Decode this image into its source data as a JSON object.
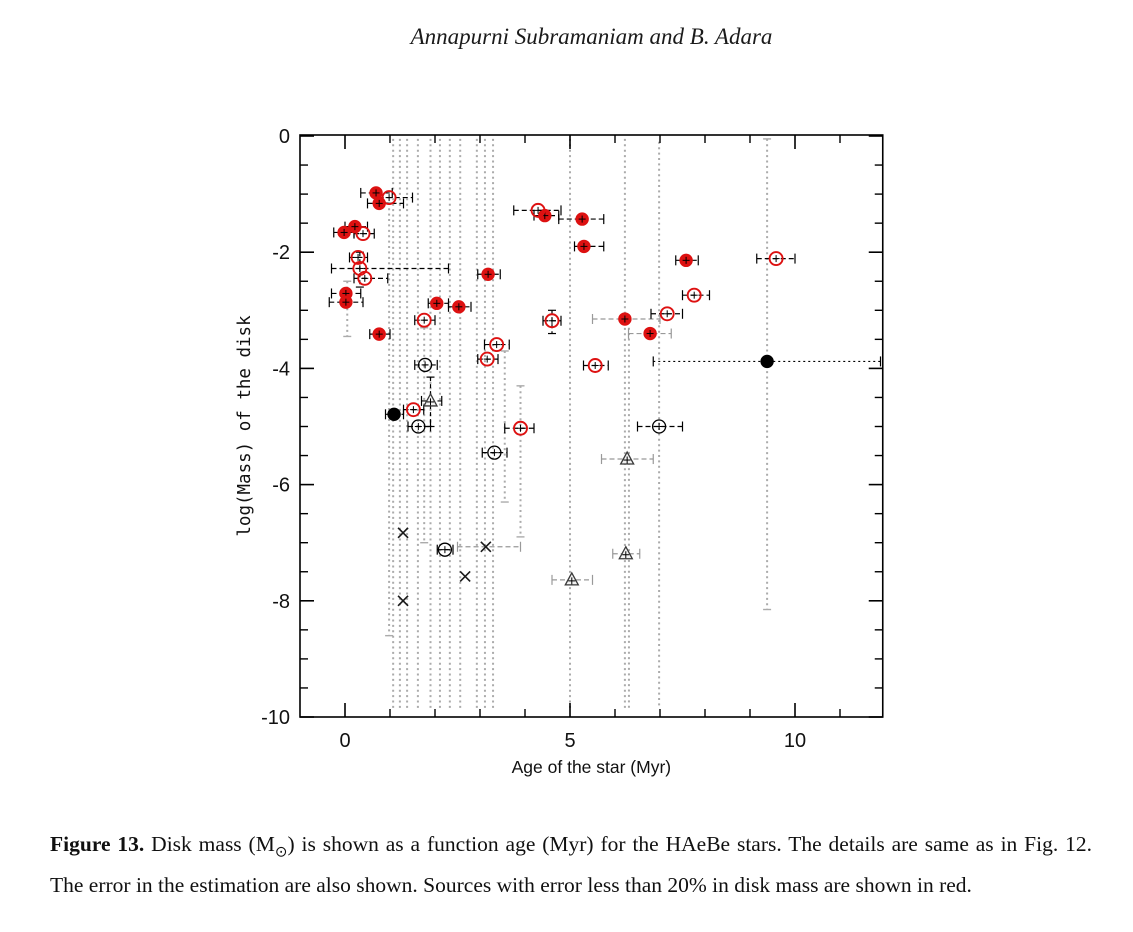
{
  "header": {
    "authors": "Annapurni Subramaniam and B. Adara"
  },
  "figure": {
    "label": "Figure 13.",
    "caption_pre_sub": " Disk mass (M",
    "caption_sub": "⊙",
    "caption_post_sub": ") is shown as a function age (Myr) for the HAeBe stars. The details are same as in Fig. 12. The error in the estimation are also shown. Sources with error less than 20% in disk mass are shown in red."
  },
  "chart_data": {
    "type": "scatter",
    "title": "",
    "xlabel": "Age of the star (Myr)",
    "ylabel": "log(Mass) of the disk",
    "xlim": [
      -1,
      11.95
    ],
    "ylim": [
      -10,
      0
    ],
    "xticks_major": [
      0,
      5,
      10
    ],
    "xticks_minor": [
      1,
      2,
      3,
      4,
      6,
      7,
      8,
      9,
      11
    ],
    "yticks_major": [
      0,
      -2,
      -4,
      -6,
      -8,
      -10
    ],
    "ytick_minor_step": 0.5,
    "grid": false,
    "legend_position": "none",
    "note": "red symbols = sources with error less than 20% in disk mass",
    "colors": {
      "red": "#dd1111",
      "black": "#000000",
      "gray": "#999999",
      "bar_gray": "#ababab"
    },
    "series": [
      {
        "name": "red filled circles",
        "marker": "filled_circle",
        "color": "red",
        "points": [
          {
            "x": 0.69,
            "y": -0.98,
            "xe": [
              0.35,
              1.05
            ]
          },
          {
            "x": 0.76,
            "y": -1.16,
            "xe": [
              0.5,
              1.3
            ]
          },
          {
            "x": 0.22,
            "y": -1.56,
            "xe": [
              0.0,
              0.5
            ]
          },
          {
            "x": -0.02,
            "y": -1.66,
            "xe": [
              -0.25,
              0.2
            ]
          },
          {
            "x": 0.02,
            "y": -2.71,
            "xe": [
              -0.3,
              0.35
            ]
          },
          {
            "x": 0.02,
            "y": -2.86,
            "xe": [
              -0.35,
              0.4
            ]
          },
          {
            "x": 0.76,
            "y": -3.41,
            "xe": [
              0.55,
              1.0
            ]
          },
          {
            "x": 2.04,
            "y": -2.88,
            "xe": [
              1.85,
              2.3
            ]
          },
          {
            "x": 2.53,
            "y": -2.94,
            "xe": [
              2.3,
              2.8
            ]
          },
          {
            "x": 3.18,
            "y": -2.38,
            "xe": [
              2.95,
              3.45
            ]
          },
          {
            "x": 4.44,
            "y": -1.37,
            "xe": [
              4.2,
              4.75
            ]
          },
          {
            "x": 5.27,
            "y": -1.43,
            "xe": [
              4.75,
              5.75
            ]
          },
          {
            "x": 5.31,
            "y": -1.9,
            "xe": [
              5.1,
              5.75
            ]
          },
          {
            "x": 6.22,
            "y": -3.15,
            "xe": [
              5.5,
              7.0
            ],
            "ec": "gray"
          },
          {
            "x": 6.78,
            "y": -3.4,
            "xe": [
              6.3,
              7.25
            ],
            "ec": "gray"
          },
          {
            "x": 7.58,
            "y": -2.14,
            "xe": [
              7.35,
              7.85
            ]
          }
        ]
      },
      {
        "name": "red open circles",
        "marker": "open_circle",
        "color": "red",
        "points": [
          {
            "x": 0.98,
            "y": -1.06,
            "xe": [
              0.75,
              1.5
            ]
          },
          {
            "x": 0.4,
            "y": -1.68,
            "xe": [
              0.2,
              0.65
            ]
          },
          {
            "x": 0.29,
            "y": -2.09,
            "xe": [
              0.1,
              0.5
            ]
          },
          {
            "x": 0.33,
            "y": -2.28,
            "xe": [
              -0.3,
              2.3
            ],
            "ye": [
              -2.0,
              -2.6
            ]
          },
          {
            "x": 0.44,
            "y": -2.45,
            "xe": [
              0.2,
              0.95
            ]
          },
          {
            "x": 1.76,
            "y": -3.17,
            "xe": [
              1.55,
              2.0
            ]
          },
          {
            "x": 3.37,
            "y": -3.59,
            "xe": [
              3.1,
              3.65
            ]
          },
          {
            "x": 3.16,
            "y": -3.84,
            "xe": [
              2.95,
              3.4
            ]
          },
          {
            "x": 3.9,
            "y": -5.03,
            "xe": [
              3.55,
              4.2
            ]
          },
          {
            "x": 4.29,
            "y": -1.28,
            "xe": [
              3.75,
              4.8
            ]
          },
          {
            "x": 4.6,
            "y": -3.18,
            "xe": [
              4.4,
              4.8
            ],
            "ye": [
              -3.0,
              -3.4
            ]
          },
          {
            "x": 5.56,
            "y": -3.95,
            "xe": [
              5.3,
              5.85
            ]
          },
          {
            "x": 7.16,
            "y": -3.06,
            "xe": [
              6.8,
              7.5
            ]
          },
          {
            "x": 7.76,
            "y": -2.74,
            "xe": [
              7.5,
              8.1
            ]
          },
          {
            "x": 9.58,
            "y": -2.11,
            "xe": [
              9.15,
              10.0
            ]
          },
          {
            "x": 1.52,
            "y": -4.71,
            "xe": [
              1.3,
              1.75
            ]
          }
        ]
      },
      {
        "name": "black open circles",
        "marker": "open_circle",
        "color": "black",
        "points": [
          {
            "x": 1.78,
            "y": -3.94,
            "xe": [
              1.55,
              2.05
            ]
          },
          {
            "x": 1.63,
            "y": -5.0,
            "xe": [
              1.4,
              1.9
            ]
          },
          {
            "x": 3.32,
            "y": -5.45,
            "xe": [
              3.05,
              3.6
            ]
          },
          {
            "x": 2.22,
            "y": -7.12,
            "xe": [
              2.05,
              2.4
            ]
          },
          {
            "x": 6.98,
            "y": -5.0,
            "xe": [
              6.5,
              7.5
            ]
          }
        ]
      },
      {
        "name": "black filled circles",
        "marker": "filled_circle",
        "color": "black",
        "points": [
          {
            "x": 1.09,
            "y": -4.79,
            "xe": [
              0.9,
              1.3
            ]
          },
          {
            "x": 9.38,
            "y": -3.88,
            "xe": [
              6.85,
              11.9
            ],
            "dotted": true
          }
        ]
      },
      {
        "name": "open triangles",
        "marker": "triangle",
        "color": "black",
        "points": [
          {
            "x": 1.9,
            "y": -4.56,
            "xe": [
              1.7,
              2.15
            ],
            "ye": [
              -4.15,
              -5.0
            ]
          },
          {
            "x": 6.27,
            "y": -5.56,
            "xe": [
              5.7,
              6.85
            ],
            "ec": "gray"
          },
          {
            "x": 6.24,
            "y": -7.19,
            "xe": [
              5.95,
              6.55
            ],
            "ec": "gray"
          },
          {
            "x": 5.04,
            "y": -7.64,
            "xe": [
              4.6,
              5.5
            ],
            "ec": "gray"
          }
        ]
      },
      {
        "name": "crosses",
        "marker": "cross",
        "color": "black",
        "points": [
          {
            "x": 1.29,
            "y": -6.83
          },
          {
            "x": 3.13,
            "y": -7.07,
            "xe": [
              2.5,
              3.9
            ],
            "ec": "gray"
          },
          {
            "x": 2.67,
            "y": -7.58
          },
          {
            "x": 1.29,
            "y": -8.0
          }
        ]
      }
    ],
    "vertical_error_bars": [
      {
        "x": 0.05,
        "y1": -2.5,
        "y2": -3.45,
        "caps": true
      },
      {
        "x": 0.98,
        "y1": -1.15,
        "y2": -8.6,
        "caps": true
      },
      {
        "x": 1.07,
        "y1": -0.05,
        "y2": -9.85
      },
      {
        "x": 1.22,
        "y1": -0.05,
        "y2": -9.85
      },
      {
        "x": 1.38,
        "y1": -0.05,
        "y2": -9.85
      },
      {
        "x": 1.62,
        "y1": -0.05,
        "y2": -9.85
      },
      {
        "x": 1.76,
        "y1": -3.3,
        "y2": -7.0,
        "caps": true
      },
      {
        "x": 1.9,
        "y1": -0.05,
        "y2": -9.85
      },
      {
        "x": 2.11,
        "y1": -0.05,
        "y2": -9.85
      },
      {
        "x": 2.33,
        "y1": -0.05,
        "y2": -9.85
      },
      {
        "x": 2.56,
        "y1": -0.05,
        "y2": -9.85
      },
      {
        "x": 2.93,
        "y1": -0.05,
        "y2": -9.85
      },
      {
        "x": 3.11,
        "y1": -0.05,
        "y2": -9.85
      },
      {
        "x": 3.29,
        "y1": -0.05,
        "y2": -9.85
      },
      {
        "x": 3.55,
        "y1": -3.7,
        "y2": -6.3,
        "caps": true
      },
      {
        "x": 3.9,
        "y1": -4.3,
        "y2": -6.9,
        "caps": true
      },
      {
        "x": 5.0,
        "y1": -0.05,
        "y2": -9.85
      },
      {
        "x": 6.22,
        "y1": -0.05,
        "y2": -9.85
      },
      {
        "x": 6.31,
        "y1": -3.3,
        "y2": -9.85
      },
      {
        "x": 6.98,
        "y1": -0.1,
        "y2": -9.85
      },
      {
        "x": 9.38,
        "y1": -0.05,
        "y2": -8.15,
        "caps": true
      }
    ]
  }
}
